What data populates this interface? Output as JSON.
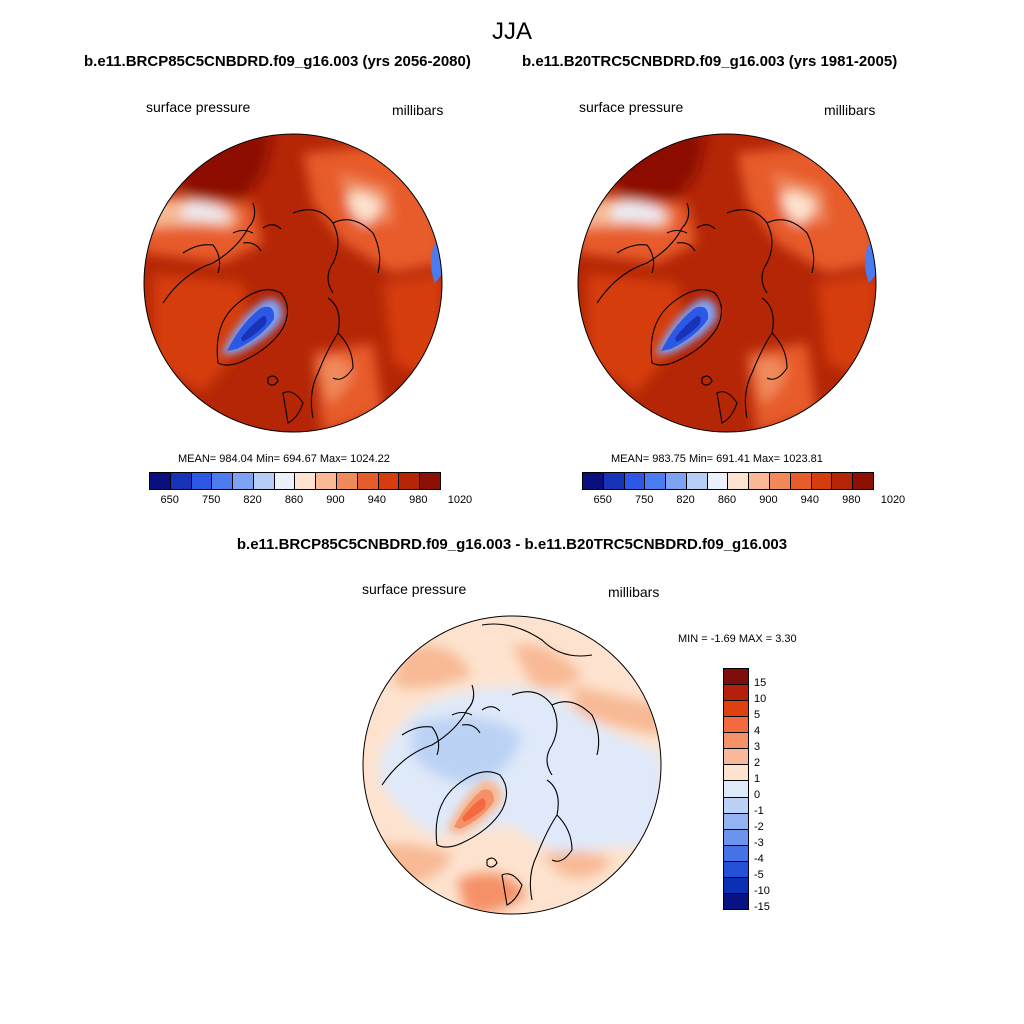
{
  "season": "JJA",
  "panels": [
    {
      "title": "b.e11.BRCP85C5CNBDRD.f09_g16.003 (yrs 2056-2080)",
      "variable": "surface pressure",
      "units": "millibars",
      "stats": "MEAN= 984.04  Min= 694.67  Max= 1024.22"
    },
    {
      "title": "b.e11.B20TRC5CNBDRD.f09_g16.003 (yrs 1981-2005)",
      "variable": "surface pressure",
      "units": "millibars",
      "stats": "MEAN= 983.75  Min= 691.41  Max= 1023.81"
    }
  ],
  "diff": {
    "title": "b.e11.BRCP85C5CNBDRD.f09_g16.003 - b.e11.B20TRC5CNBDRD.f09_g16.003",
    "variable": "surface pressure",
    "units": "millibars",
    "minmax": "MIN =  -1.69 MAX =   3.30"
  },
  "abs_colorbar": {
    "colors": [
      "#08107e",
      "#1832b8",
      "#2b58e4",
      "#4a7cf0",
      "#7ea3f5",
      "#b6cdf6",
      "#eaf1fb",
      "#fde3cf",
      "#f8b994",
      "#f08a5b",
      "#e75c2c",
      "#d63d0e",
      "#b42606",
      "#8c1003"
    ],
    "labels": [
      "650",
      "750",
      "820",
      "860",
      "900",
      "940",
      "980",
      "1020"
    ]
  },
  "diff_colorbar": {
    "colors": [
      "#7e0e07",
      "#b5200a",
      "#e0400f",
      "#f26a3e",
      "#f59168",
      "#f8b89a",
      "#fde3cf",
      "#dfe9f9",
      "#bcd2f5",
      "#93b3f2",
      "#6c93ee",
      "#4672e7",
      "#2450d9",
      "#0b2fb5",
      "#071283"
    ],
    "labels": [
      "15",
      "10",
      "5",
      "4",
      "3",
      "2",
      "1",
      "0",
      "-1",
      "-2",
      "-3",
      "-4",
      "-5",
      "-10",
      "-15"
    ]
  }
}
